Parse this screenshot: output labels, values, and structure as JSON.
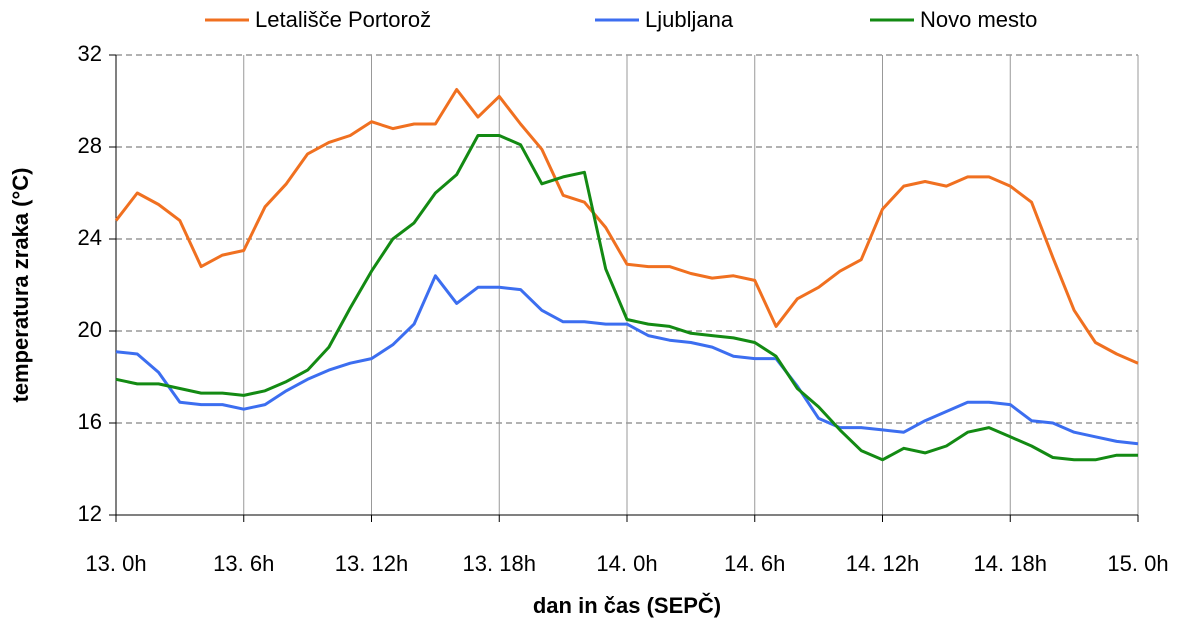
{
  "chart_data": {
    "type": "line",
    "xlabel": "dan in čas (SEPČ)",
    "ylabel": "temperatura zraka (°C)",
    "x": [
      0,
      1,
      2,
      3,
      4,
      5,
      6,
      7,
      8,
      9,
      10,
      11,
      12,
      13,
      14,
      15,
      16,
      17,
      18,
      19,
      20,
      21,
      22,
      23,
      24,
      25,
      26,
      27,
      28,
      29,
      30,
      31,
      32,
      33,
      34,
      35,
      36,
      37,
      38,
      39,
      40,
      41,
      42,
      43,
      44,
      45,
      46,
      47,
      48
    ],
    "series": [
      {
        "name": "Letališče Portorož",
        "color": "#f07020",
        "values": [
          24.8,
          26.0,
          25.5,
          24.8,
          22.8,
          23.3,
          23.5,
          25.4,
          26.4,
          27.7,
          28.2,
          28.5,
          29.1,
          28.8,
          29.0,
          29.0,
          30.5,
          29.3,
          30.2,
          29.0,
          27.9,
          25.9,
          25.6,
          24.5,
          22.9,
          22.8,
          22.8,
          22.5,
          22.3,
          22.4,
          22.2,
          20.2,
          21.4,
          21.9,
          22.6,
          23.1,
          25.3,
          26.3,
          26.5,
          26.3,
          26.7,
          26.7,
          26.3,
          25.6,
          23.2,
          20.9,
          19.5,
          19.0,
          18.6
        ]
      },
      {
        "name": "Ljubljana",
        "color": "#3c6ef0",
        "values": [
          19.1,
          19.0,
          18.2,
          16.9,
          16.8,
          16.8,
          16.6,
          16.8,
          17.4,
          17.9,
          18.3,
          18.6,
          18.8,
          19.4,
          20.3,
          22.4,
          21.2,
          21.9,
          21.9,
          21.8,
          20.9,
          20.4,
          20.4,
          20.3,
          20.3,
          19.8,
          19.6,
          19.5,
          19.3,
          18.9,
          18.8,
          18.8,
          17.6,
          16.2,
          15.8,
          15.8,
          15.7,
          15.6,
          16.1,
          16.5,
          16.9,
          16.9,
          16.8,
          16.1,
          16.0,
          15.6,
          15.4,
          15.2,
          15.1
        ]
      },
      {
        "name": "Novo mesto",
        "color": "#138a13",
        "values": [
          17.9,
          17.7,
          17.7,
          17.5,
          17.3,
          17.3,
          17.2,
          17.4,
          17.8,
          18.3,
          19.3,
          21.0,
          22.6,
          24.0,
          24.7,
          26.0,
          26.8,
          28.5,
          28.5,
          28.1,
          26.4,
          26.7,
          26.9,
          22.7,
          20.5,
          20.3,
          20.2,
          19.9,
          19.8,
          19.7,
          19.5,
          18.9,
          17.5,
          16.7,
          15.7,
          14.8,
          14.4,
          14.9,
          14.7,
          15.0,
          15.6,
          15.8,
          15.4,
          15.0,
          14.5,
          14.4,
          14.4,
          14.6,
          14.6
        ]
      }
    ],
    "xlim": [
      0,
      48
    ],
    "xticks": [
      {
        "value": 0,
        "label": "13. 0h"
      },
      {
        "value": 6,
        "label": "13. 6h"
      },
      {
        "value": 12,
        "label": "13. 12h"
      },
      {
        "value": 18,
        "label": "13. 18h"
      },
      {
        "value": 24,
        "label": "14. 0h"
      },
      {
        "value": 30,
        "label": "14. 6h"
      },
      {
        "value": 36,
        "label": "14. 12h"
      },
      {
        "value": 42,
        "label": "14. 18h"
      },
      {
        "value": 48,
        "label": "15. 0h"
      }
    ],
    "ylim": [
      12,
      32
    ],
    "yticks": [
      12,
      16,
      20,
      24,
      28,
      32
    ],
    "grid": true,
    "legend": "top"
  }
}
